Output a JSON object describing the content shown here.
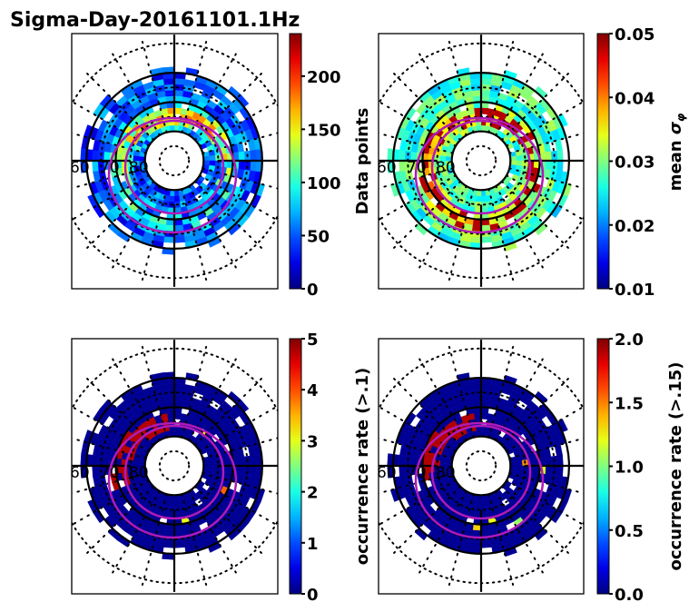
{
  "chart_data": {
    "title": "Sigma-Day-20161101.1Hz",
    "type": "heatmap",
    "projection": "polar (magnetic latitude / MLT)",
    "panels": [
      {
        "id": "data-points",
        "colorbar_label": "Data points",
        "colormap": "jet",
        "clim": [
          0,
          240
        ],
        "colorbar_ticks": [
          "0",
          "50",
          "100",
          "150",
          "200"
        ],
        "colorbar_tick_values": [
          0,
          50,
          100,
          150,
          200
        ],
        "lat_labels": [
          "60",
          "70",
          "80"
        ],
        "description": "Mostly 10-120 counts, peak ~200+ near 70-75 MLAT noon sector"
      },
      {
        "id": "mean-sigma-phi",
        "colorbar_label": "mean σ_φ",
        "colormap": "jet",
        "clim": [
          0.01,
          0.05
        ],
        "colorbar_ticks": [
          "0.01",
          "0.02",
          "0.03",
          "0.04",
          "0.05"
        ],
        "colorbar_tick_values": [
          0.01,
          0.02,
          0.03,
          0.04,
          0.05
        ],
        "lat_labels": [
          "60",
          "70",
          "80"
        ],
        "description": "Values ~0.02-0.035 outer ring, enhanced 0.04-0.05 in cusp/auroral oval"
      },
      {
        "id": "occurrence-rate-01",
        "colorbar_label": "occurrence rate (>.1)",
        "colormap": "jet",
        "clim": [
          0,
          5
        ],
        "colorbar_ticks": [
          "0",
          "1",
          "2",
          "3",
          "4",
          "5"
        ],
        "colorbar_tick_values": [
          0,
          1,
          2,
          3,
          4,
          5
        ],
        "lat_labels": [
          "60",
          "70",
          "80"
        ],
        "description": "Mostly 0, saturated ~5 along dayside/dusk oval"
      },
      {
        "id": "occurrence-rate-015",
        "colorbar_label": "occurrence rate (>.15)",
        "colormap": "jet",
        "clim": [
          0.0,
          2.0
        ],
        "colorbar_ticks": [
          "0.0",
          "0.5",
          "1.0",
          "1.5",
          "2.0"
        ],
        "colorbar_tick_values": [
          0.0,
          0.5,
          1.0,
          1.5,
          2.0
        ],
        "lat_labels": [
          "60",
          "70",
          "80"
        ],
        "description": "Mostly 0, saturated ~2 along dayside/dusk oval"
      }
    ],
    "grid": {
      "solid_latitudes": [
        60,
        70,
        80
      ],
      "dotted_latitudes": [
        50,
        65,
        75,
        85
      ],
      "overlay": "two magenta auroral oval boundaries"
    }
  }
}
